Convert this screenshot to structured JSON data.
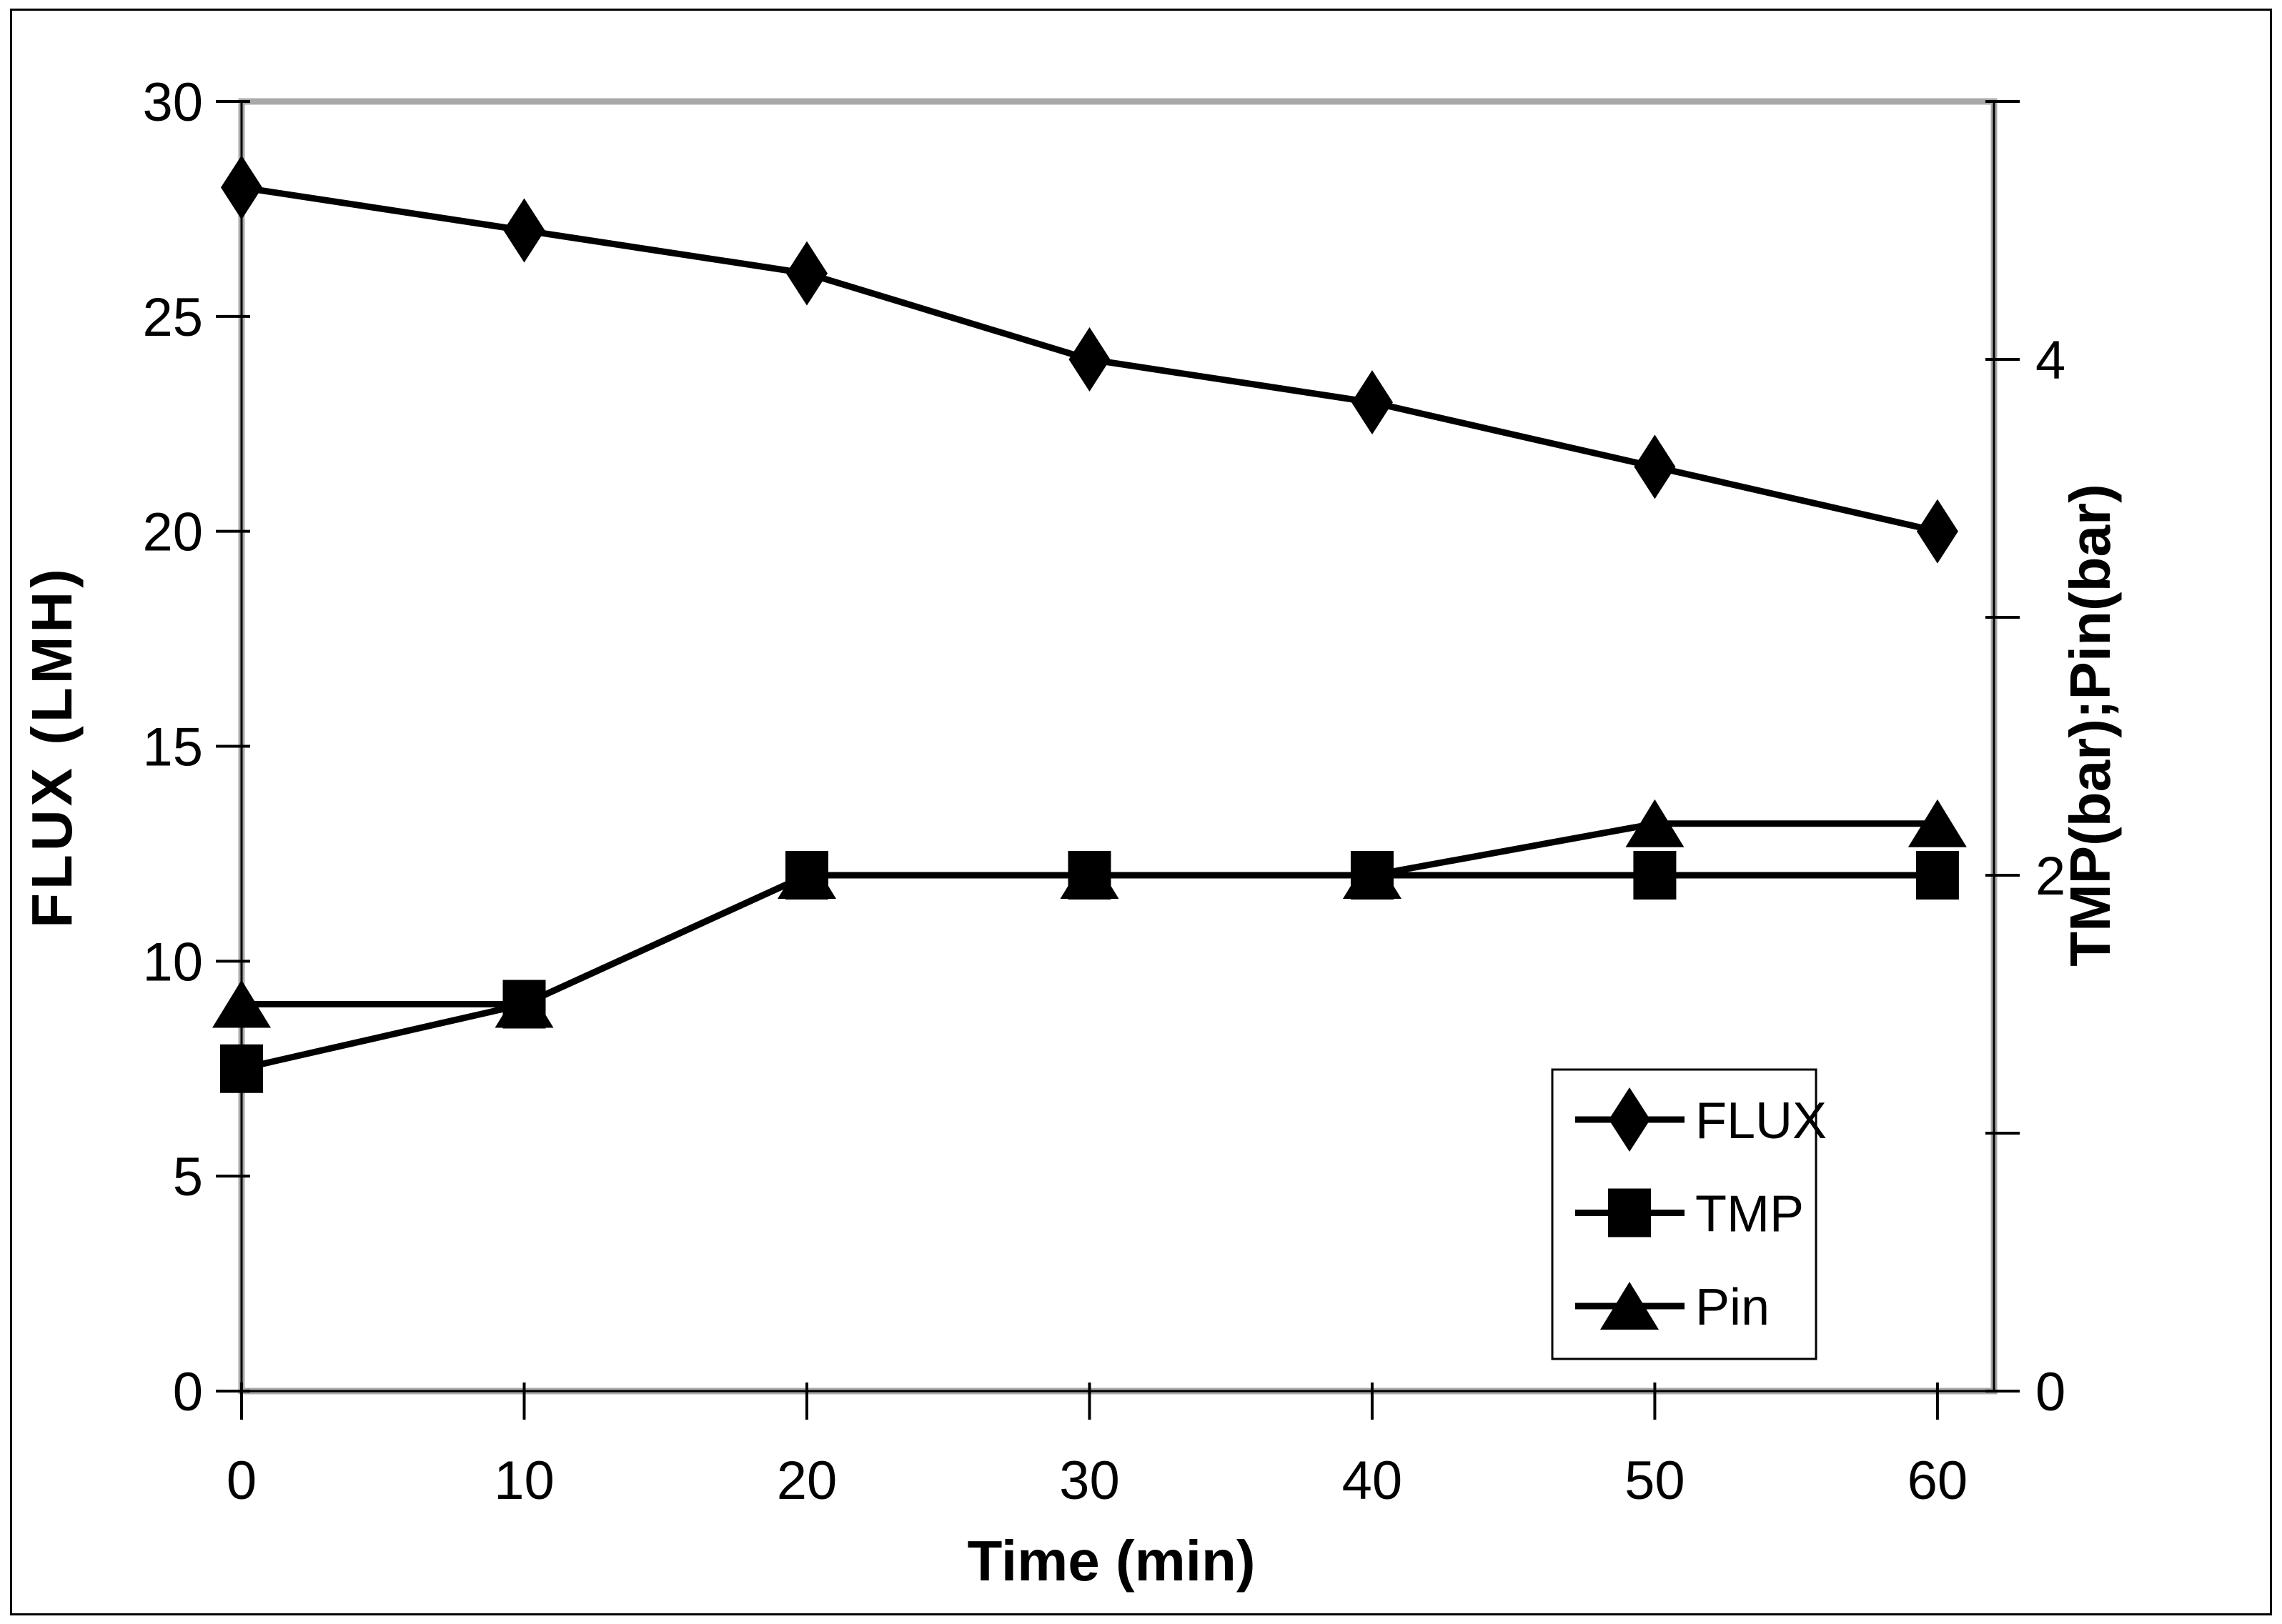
{
  "chart_data": {
    "type": "line",
    "x": [
      0,
      10,
      20,
      30,
      40,
      50,
      60
    ],
    "series": [
      {
        "name": "FLUX",
        "axis": "left",
        "marker": "diamond",
        "values": [
          28,
          27,
          26,
          24,
          23,
          21.5,
          20
        ]
      },
      {
        "name": "TMP",
        "axis": "right",
        "marker": "square",
        "values": [
          1.25,
          1.5,
          2,
          2,
          2,
          2,
          2
        ]
      },
      {
        "name": "Pin",
        "axis": "right",
        "marker": "triangle",
        "values": [
          1.5,
          1.5,
          2,
          2,
          2,
          2.2,
          2.2
        ]
      }
    ],
    "xlabel": "Time (min)",
    "ylabel_left": "FLUX (LMH)",
    "ylabel_right": "TMP(bar);Pin(bar)",
    "xlim": [
      0,
      62
    ],
    "x_ticks": [
      0,
      10,
      20,
      30,
      40,
      50,
      60
    ],
    "x_tick_labels": [
      "0",
      "10",
      "20",
      "30",
      "40",
      "50",
      "60"
    ],
    "left_axis": {
      "range": [
        0,
        30
      ],
      "ticks": [
        0,
        5,
        10,
        15,
        20,
        25,
        30
      ],
      "tick_labels": [
        "0",
        "5",
        "10",
        "15",
        "20",
        "25",
        "30"
      ]
    },
    "right_axis": {
      "range": [
        0,
        5
      ],
      "ticks": [
        0,
        1,
        2,
        3,
        4,
        5
      ],
      "labeled_ticks": [
        0,
        2,
        4
      ],
      "labels": [
        "0",
        "2",
        "4"
      ]
    },
    "legend": {
      "entries": [
        "FLUX",
        "TMP",
        "Pin"
      ],
      "position": "inside-bottom-right"
    },
    "grid": "off",
    "colors": {
      "series": "#000000",
      "frame": "#a9a9a9",
      "background": "#ffffff"
    }
  }
}
